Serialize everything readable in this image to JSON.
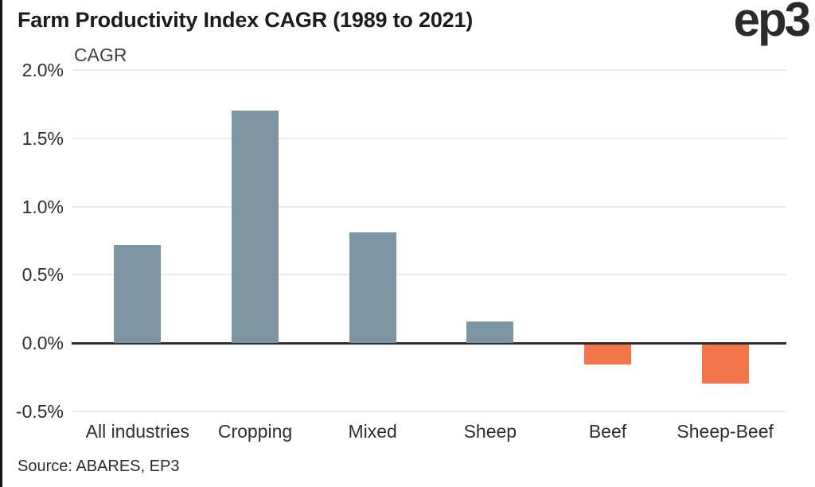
{
  "header": {
    "logo": "ep3"
  },
  "chart_data": {
    "type": "bar",
    "title": "Farm Productivity Index CAGR (1989 to 2021)",
    "axis_label": "CAGR",
    "categories": [
      "All industries",
      "Cropping",
      "Mixed",
      "Sheep",
      "Beef",
      "Sheep-Beef"
    ],
    "values": [
      0.72,
      1.7,
      0.81,
      0.16,
      -0.15,
      -0.29
    ],
    "unit": "%",
    "y_ticks": [
      2.0,
      1.5,
      1.0,
      0.5,
      0.0,
      -0.5
    ],
    "y_tick_labels": [
      "2.0%",
      "1.5%",
      "1.0%",
      "0.5%",
      "0.0%",
      "-0.5%"
    ],
    "ylim": [
      -0.5,
      2.0
    ],
    "grid": "horizontal",
    "legend": "none",
    "colors": {
      "positive_bar": "#7d95a3",
      "negative_bar": "#f3764a",
      "gridline": "#efecdf",
      "zero_line": "#2d2d2d",
      "text": "#2e2e2e"
    },
    "source": "Source: ABARES, EP3"
  }
}
